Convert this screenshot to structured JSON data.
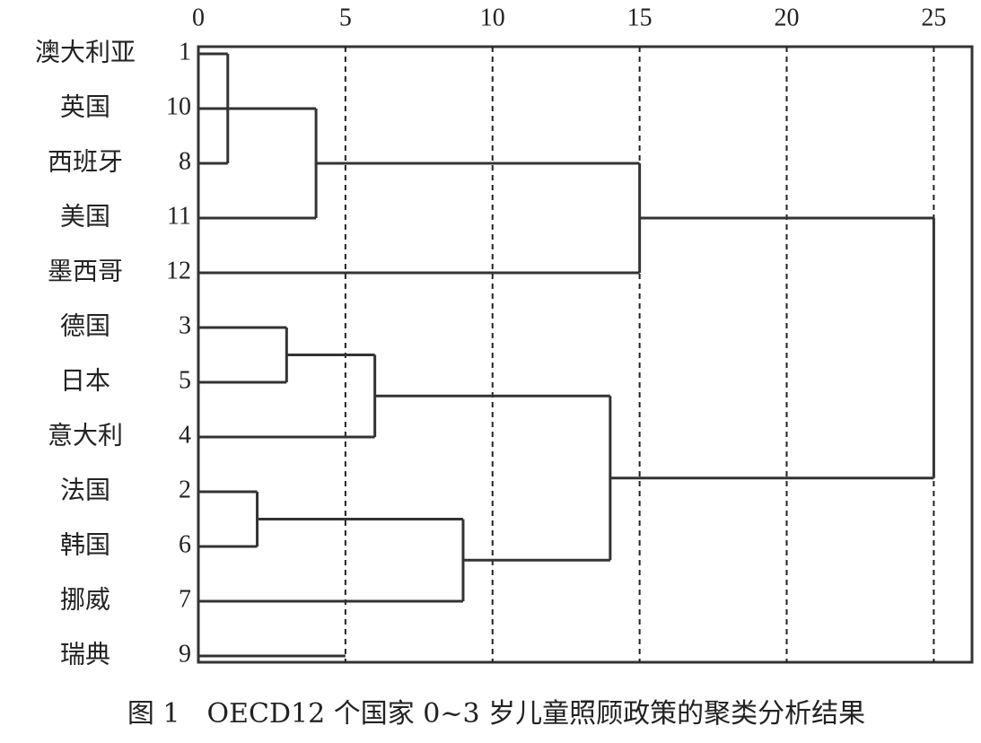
{
  "chart_data": {
    "type": "dendrogram",
    "title": "图 1　OECD12 个国家 0~3 岁儿童照顾政策的聚类分析结果",
    "leaves": [
      {
        "name": "澳大利亚",
        "id": 1
      },
      {
        "name": "英国",
        "id": 10
      },
      {
        "name": "西班牙",
        "id": 8
      },
      {
        "name": "美国",
        "id": 11
      },
      {
        "name": "墨西哥",
        "id": 12
      },
      {
        "name": "德国",
        "id": 3
      },
      {
        "name": "日本",
        "id": 5
      },
      {
        "name": "意大利",
        "id": 4
      },
      {
        "name": "法国",
        "id": 2
      },
      {
        "name": "韩国",
        "id": 6
      },
      {
        "name": "挪威",
        "id": 7
      },
      {
        "name": "瑞典",
        "id": 9
      }
    ],
    "merges": [
      {
        "children": [
          0,
          2
        ],
        "height": 1
      },
      {
        "children": [
          12,
          1,
          3
        ],
        "height": 4
      },
      {
        "children": [
          13,
          4
        ],
        "height": 15
      },
      {
        "children": [
          5,
          6
        ],
        "height": 3
      },
      {
        "children": [
          15,
          7
        ],
        "height": 6
      },
      {
        "children": [
          8,
          9
        ],
        "height": 2
      },
      {
        "children": [
          17,
          10
        ],
        "height": 9
      },
      {
        "children": [
          16,
          18
        ],
        "height": 14
      },
      {
        "children": [
          14,
          19
        ],
        "height": 25
      },
      {
        "children": [
          11
        ],
        "height": 5
      }
    ],
    "xlim": [
      0,
      26.3
    ],
    "xticks": [
      0,
      5,
      10,
      15,
      20,
      25
    ],
    "grid": true,
    "color": "#333333"
  }
}
